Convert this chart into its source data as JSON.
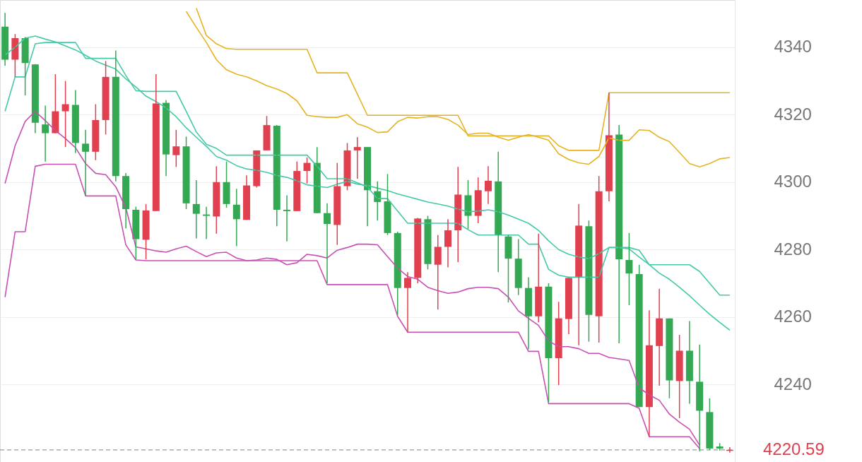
{
  "chart_data": {
    "type": "candlestick",
    "categories": [
      null,
      null,
      null,
      null,
      null,
      null,
      null,
      null,
      null,
      null,
      null,
      null,
      null,
      null,
      null,
      null,
      null,
      null,
      null,
      null,
      null,
      null,
      null,
      null,
      null,
      null,
      null,
      null,
      null,
      null,
      null,
      null,
      null,
      null,
      null,
      null,
      null,
      null,
      null,
      null,
      null,
      null,
      null,
      null,
      null,
      null,
      null,
      null,
      null,
      null,
      null,
      null,
      null,
      null,
      null,
      null,
      null,
      null,
      null,
      null,
      null,
      null,
      null,
      null,
      null,
      null,
      null,
      null,
      null,
      null,
      null,
      null,
      null
    ],
    "ohlc": [
      [
        4346.1,
        4350.2,
        4334.5,
        4336.3
      ],
      [
        4336.3,
        4343.9,
        4331.2,
        4342.7
      ],
      [
        4342.7,
        4343.0,
        4325.7,
        4335.3
      ],
      [
        4334.9,
        4335.0,
        4314.5,
        4317.6
      ],
      [
        4317.1,
        4322.7,
        4306.1,
        4314.5
      ],
      [
        4314.5,
        4332.0,
        4314.5,
        4321.0
      ],
      [
        4321.0,
        4330.0,
        4310.4,
        4323.1
      ],
      [
        4322.9,
        4327.3,
        4308.6,
        4311.6
      ],
      [
        4311.4,
        4315.5,
        4295.9,
        4309.0
      ],
      [
        4309.0,
        4323.1,
        4306.5,
        4318.4
      ],
      [
        4318.4,
        4335.9,
        4314.1,
        4331.2
      ],
      [
        4331.2,
        4339.0,
        4300.2,
        4301.8
      ],
      [
        4301.8,
        4302.7,
        4286.3,
        4292.0
      ],
      [
        4291.8,
        4292.7,
        4277.1,
        4283.1
      ],
      [
        4282.9,
        4293.5,
        4277.1,
        4291.6
      ],
      [
        4291.4,
        4332.0,
        4291.4,
        4323.3
      ],
      [
        4323.5,
        4324.3,
        4301.8,
        4308.2
      ],
      [
        4308.0,
        4315.5,
        4304.5,
        4310.6
      ],
      [
        4310.6,
        4313.5,
        4292.0,
        4293.7
      ],
      [
        4293.5,
        4300.6,
        4283.3,
        4290.6
      ],
      [
        4290.4,
        4292.7,
        4283.1,
        4290.0
      ],
      [
        4289.8,
        4304.7,
        4284.7,
        4300.0
      ],
      [
        4300.0,
        4306.1,
        4292.4,
        4293.5
      ],
      [
        4293.3,
        4298.0,
        4281.0,
        4289.0
      ],
      [
        4288.8,
        4302.0,
        4288.8,
        4299.0
      ],
      [
        4298.8,
        4309.4,
        4298.4,
        4309.4
      ],
      [
        4309.4,
        4319.6,
        4309.4,
        4316.9
      ],
      [
        4316.7,
        4316.9,
        4286.9,
        4291.8
      ],
      [
        4291.8,
        4296.1,
        4282.4,
        4291.4
      ],
      [
        4291.4,
        4306.1,
        4291.4,
        4303.3
      ],
      [
        4303.3,
        4307.3,
        4299.6,
        4305.7
      ],
      [
        4305.7,
        4310.4,
        4290.8,
        4290.8
      ],
      [
        4290.8,
        4293.7,
        4270.0,
        4287.6
      ],
      [
        4287.3,
        4305.7,
        4281.4,
        4298.8
      ],
      [
        4298.8,
        4311.6,
        4297.6,
        4309.4
      ],
      [
        4309.4,
        4313.3,
        4301.0,
        4310.4
      ],
      [
        4310.4,
        4310.4,
        4286.9,
        4297.6
      ],
      [
        4297.3,
        4300.2,
        4288.6,
        4294.1
      ],
      [
        4294.3,
        4302.4,
        4284.3,
        4284.9
      ],
      [
        4284.9,
        4285.3,
        4260.6,
        4268.6
      ],
      [
        4268.6,
        4273.3,
        4255.5,
        4271.6
      ],
      [
        4271.6,
        4289.4,
        4270.0,
        4289.2
      ],
      [
        4289.0,
        4290.0,
        4274.1,
        4275.7
      ],
      [
        4275.5,
        4284.3,
        4262.2,
        4280.8
      ],
      [
        4280.8,
        4289.0,
        4274.7,
        4285.7
      ],
      [
        4285.7,
        4304.5,
        4276.3,
        4296.3
      ],
      [
        4296.1,
        4300.6,
        4286.1,
        4290.0
      ],
      [
        4290.0,
        4301.4,
        4287.8,
        4297.6
      ],
      [
        4297.3,
        4304.7,
        4293.5,
        4300.4
      ],
      [
        4300.2,
        4309.0,
        4273.3,
        4284.3
      ],
      [
        4283.9,
        4284.3,
        4264.3,
        4277.3
      ],
      [
        4277.3,
        4283.1,
        4266.5,
        4268.6
      ],
      [
        4268.6,
        4271.8,
        4250.4,
        4260.2
      ],
      [
        4260.2,
        4284.7,
        4258.4,
        4269.0
      ],
      [
        4269.0,
        4270.0,
        4234.7,
        4247.8
      ],
      [
        4247.8,
        4264.5,
        4239.8,
        4259.6
      ],
      [
        4259.4,
        4271.6,
        4254.9,
        4271.6
      ],
      [
        4271.8,
        4293.5,
        4251.6,
        4287.1
      ],
      [
        4286.9,
        4288.6,
        4252.7,
        4260.6
      ],
      [
        4260.2,
        4301.8,
        4252.4,
        4297.3
      ],
      [
        4297.3,
        4326.5,
        4294.3,
        4313.9
      ],
      [
        4314.1,
        4316.9,
        4252.2,
        4277.1
      ],
      [
        4276.9,
        4284.9,
        4263.5,
        4272.9
      ],
      [
        4272.7,
        4275.5,
        4233.3,
        4233.3
      ],
      [
        4233.3,
        4262.0,
        4224.5,
        4251.6
      ],
      [
        4251.4,
        4268.4,
        4239.6,
        4259.6
      ],
      [
        4259.6,
        4259.6,
        4235.9,
        4241.2
      ],
      [
        4241.0,
        4254.7,
        4230.0,
        4250.0
      ],
      [
        4250.0,
        4258.8,
        4234.3,
        4241.0
      ],
      [
        4240.8,
        4251.8,
        4220.2,
        4232.2
      ],
      [
        4231.8,
        4235.9,
        4220.6,
        4221.0
      ],
      [
        4221.6,
        4222.6,
        4220.4,
        4221.0
      ],
      [
        4220.3,
        4221.4,
        4219.8,
        4220.59
      ]
    ],
    "colors": [
      "#34a853",
      "#e0404f",
      "#34a853",
      "#34a853",
      "#34a853",
      "#e0404f",
      "#e0404f",
      "#34a853",
      "#34a853",
      "#e0404f",
      "#e0404f",
      "#34a853",
      "#34a853",
      "#34a853",
      "#e0404f",
      "#e0404f",
      "#34a853",
      "#e0404f",
      "#34a853",
      "#34a853",
      "#34a853",
      "#e0404f",
      "#34a853",
      "#34a853",
      "#e0404f",
      "#e0404f",
      "#e0404f",
      "#34a853",
      "#34a853",
      "#e0404f",
      "#e0404f",
      "#34a853",
      "#34a853",
      "#e0404f",
      "#e0404f",
      "#e0404f",
      "#34a853",
      "#34a853",
      "#34a853",
      "#34a853",
      "#e0404f",
      "#e0404f",
      "#34a853",
      "#e0404f",
      "#e0404f",
      "#e0404f",
      "#34a853",
      "#e0404f",
      "#e0404f",
      "#34a853",
      "#34a853",
      "#34a853",
      "#34a853",
      "#e0404f",
      "#34a853",
      "#e0404f",
      "#e0404f",
      "#e0404f",
      "#34a853",
      "#e0404f",
      "#e0404f",
      "#34a853",
      "#34a853",
      "#34a853",
      "#e0404f",
      "#e0404f",
      "#34a853",
      "#e0404f",
      "#34a853",
      "#34a853",
      "#34a853",
      "#34a853",
      "#e0404f"
    ],
    "series": [
      {
        "type": "line",
        "color": "#45c9a8",
        "values": [
          4337.7,
          4340.0,
          4342.7,
          4343.3,
          4342.4,
          4341.6,
          4340.4,
          4339.2,
          4337.6,
          4335.9,
          4334.7,
          4333.5,
          4330.6,
          4328.2,
          4325.5,
          4323.9,
          4322.0,
          4319.4,
          4316.1,
          4313.3,
          4310.6,
          4307.6,
          4306.5,
          4304.9,
          4303.9,
          4303.5,
          4302.9,
          4302.0,
          4301.4,
          4300.4,
          4299.2,
          4298.8,
          4298.4,
          4299.4,
          4300.2,
          4299.4,
          4299.0,
          4298.2,
          4297.5,
          4296.5,
          4295.7,
          4294.9,
          4294.1,
          4293.5,
          4292.9,
          4292.0,
          4291.2,
          4291.4,
          4291.8,
          4291.2,
          4290.2,
          4289.0,
          4287.8,
          4285.7,
          4282.6,
          4280.0,
          4278.6,
          4277.8,
          4277.3,
          4278.8,
          4280.6,
          4280.6,
          4280.2,
          4277.8,
          4275.5,
          4273.0,
          4271.2,
          4268.8,
          4266.3,
          4263.5,
          4260.8,
          4258.4,
          4256.1
        ]
      },
      {
        "type": "line",
        "color": "#45c9a8",
        "values": [
          4321.0,
          4331.2,
          4331.2,
          4341.0,
          4341.4,
          4341.4,
          4341.4,
          4341.4,
          4336.7,
          4336.7,
          4336.7,
          4336.7,
          4331.6,
          4327.1,
          4326.9,
          4326.9,
          4326.9,
          4326.9,
          4321.0,
          4314.9,
          4311.2,
          4310.0,
          4308.0,
          4308.0,
          4308.0,
          4308.0,
          4308.0,
          4308.0,
          4308.0,
          4308.0,
          4308.0,
          4304.7,
          4301.0,
          4301.0,
          4301.0,
          4299.8,
          4298.6,
          4295.1,
          4295.1,
          4291.4,
          4287.8,
          4287.8,
          4287.8,
          4287.8,
          4287.8,
          4287.8,
          4285.9,
          4284.3,
          4284.3,
          4284.3,
          4284.3,
          4284.3,
          4281.6,
          4281.6,
          4274.1,
          4272.4,
          4271.8,
          4271.8,
          4271.8,
          4271.8,
          4280.6,
          4280.6,
          4280.6,
          4279.8,
          4275.5,
          4275.5,
          4275.5,
          4275.5,
          4275.5,
          4273.5,
          4270.0,
          4266.5,
          4266.5
        ]
      },
      {
        "type": "line",
        "color": "#e6b422",
        "values": [
          null,
          null,
          null,
          null,
          null,
          null,
          null,
          null,
          null,
          null,
          null,
          null,
          null,
          null,
          null,
          null,
          null,
          null,
          null,
          4351.6,
          4343.5,
          4341.0,
          4339.6,
          4339.4,
          4339.4,
          4339.4,
          4339.4,
          4339.4,
          4339.4,
          4339.4,
          4339.4,
          4332.4,
          4332.4,
          4332.4,
          4332.4,
          4326.1,
          4319.8,
          4319.8,
          4319.8,
          4319.8,
          4319.8,
          4319.8,
          4319.8,
          4319.8,
          4319.8,
          4319.8,
          4313.7,
          4313.7,
          4313.7,
          4313.7,
          4313.7,
          4313.7,
          4313.7,
          4313.7,
          4313.7,
          4310.8,
          4309.4,
          4309.4,
          4309.4,
          4309.4,
          4326.5,
          4326.5,
          4326.5,
          4326.5,
          4326.5,
          4326.5,
          4326.5,
          4326.5,
          4326.5,
          4326.5,
          4326.5,
          4326.5,
          4326.5
        ]
      },
      {
        "type": "line",
        "color": "#e6b422",
        "values": [
          null,
          null,
          null,
          null,
          null,
          null,
          null,
          null,
          null,
          null,
          null,
          null,
          null,
          null,
          null,
          null,
          null,
          null,
          4350.6,
          4345.9,
          4341.4,
          4336.3,
          4333.3,
          4332.0,
          4331.2,
          4330.0,
          4328.6,
          4327.6,
          4326.3,
          4324.1,
          4319.8,
          4319.4,
          4319.2,
          4319.2,
          4320.0,
          4317.3,
          4316.3,
          4314.7,
          4314.9,
          4317.9,
          4319.2,
          4319.0,
          4319.4,
          4319.4,
          4318.6,
          4316.9,
          4314.1,
          4314.5,
          4314.5,
          4313.3,
          4312.4,
          4313.3,
          4314.1,
          4313.3,
          4312.4,
          4308.4,
          4306.7,
          4305.7,
          4305.3,
          4307.6,
          4313.1,
          4312.4,
          4312.4,
          4315.5,
          4315.3,
          4313.3,
          4312.0,
          4308.8,
          4305.5,
          4304.5,
          4305.5,
          4306.9,
          4307.3
        ]
      },
      {
        "type": "line",
        "color": "#c94fb5",
        "values": [
          4299.6,
          4310.8,
          4318.0,
          4321.0,
          4318.2,
          4315.3,
          4312.9,
          4310.2,
          4305.5,
          4302.6,
          4302.2,
          4298.6,
          4292.4,
          4280.8,
          4280.2,
          4279.6,
          4279.2,
          4280.2,
          4281.0,
          4279.4,
          4277.9,
          4279.0,
          4279.2,
          4277.5,
          4276.7,
          4276.9,
          4277.5,
          4277.1,
          4275.5,
          4276.1,
          4278.6,
          4278.2,
          4277.5,
          4279.8,
          4280.6,
          4281.6,
          4281.6,
          4281.4,
          4277.9,
          4274.5,
          4272.0,
          4271.2,
          4268.8,
          4267.8,
          4267.0,
          4267.4,
          4268.4,
          4268.8,
          4268.8,
          4268.4,
          4265.9,
          4261.8,
          4259.6,
          4257.5,
          4252.9,
          4251.2,
          4251.2,
          4250.6,
          4249.2,
          4249.2,
          4248.0,
          4247.6,
          4247.1,
          4239.0,
          4236.9,
          4235.3,
          4231.2,
          4228.8,
          4226.7,
          4222.0,
          null,
          null,
          null
        ]
      },
      {
        "type": "line",
        "color": "#c94fb5",
        "values": [
          4265.9,
          4285.3,
          4285.3,
          4304.7,
          4305.3,
          4305.3,
          4305.3,
          4305.3,
          4295.9,
          4295.9,
          4295.9,
          4295.9,
          4281.4,
          4276.9,
          4276.7,
          4276.7,
          4276.7,
          4276.7,
          4276.7,
          4276.7,
          4276.7,
          4276.7,
          4276.7,
          4276.7,
          4276.7,
          4276.7,
          4276.7,
          4276.7,
          4276.7,
          4276.7,
          4276.7,
          4276.7,
          4269.6,
          4269.6,
          4269.6,
          4269.6,
          4269.6,
          4269.6,
          4269.6,
          4260.2,
          4255.5,
          4255.5,
          4255.5,
          4255.5,
          4255.5,
          4255.5,
          4255.5,
          4255.5,
          4255.5,
          4255.5,
          4255.5,
          4255.5,
          4249.8,
          4249.8,
          4234.3,
          4234.3,
          4234.3,
          4234.3,
          4234.3,
          4234.3,
          4234.3,
          4234.3,
          4234.3,
          4232.9,
          4224.5,
          4224.5,
          4224.5,
          4224.5,
          4224.5,
          4221.0,
          null,
          null,
          null
        ]
      }
    ],
    "ylim": [
      4217,
      4354
    ],
    "yticks": [
      4240,
      4260,
      4280,
      4300,
      4320,
      4340
    ],
    "grid": "y",
    "tick_labels": "y",
    "line_style": "solid",
    "ref_lines": [
      {
        "axis": "y",
        "value": 4220.59,
        "label": "4220.59",
        "color": "#9a9a9a",
        "line_style": "dashed"
      }
    ]
  }
}
